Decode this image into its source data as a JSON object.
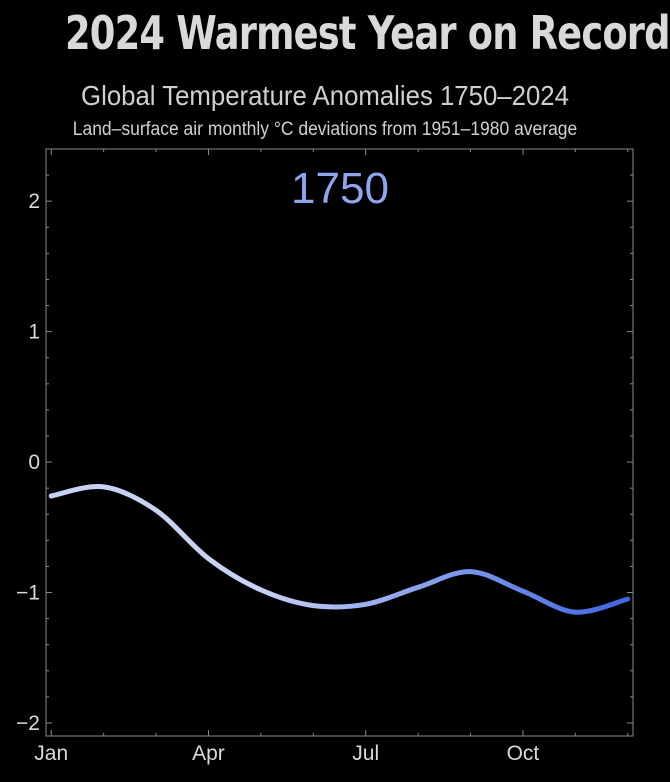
{
  "title": "2024 Warmest Year on Record",
  "subtitle": "Global Temperature Anomalies 1750–2024",
  "caption": "Land–surface air monthly °C deviations from 1951–1980 average",
  "chart_data": {
    "type": "line",
    "year_label": "1750",
    "x": [
      1,
      2,
      3,
      4,
      5,
      6,
      7,
      8,
      9,
      10,
      11,
      12
    ],
    "x_tick_values": [
      1,
      4,
      7,
      10
    ],
    "x_tick_labels": [
      "Jan",
      "Apr",
      "Jul",
      "Oct"
    ],
    "xlim": [
      0.9,
      12.1
    ],
    "ylim": [
      -2.1,
      2.4
    ],
    "y_ticks": [
      2,
      1,
      0,
      -1,
      -2
    ],
    "y_tick_labels": [
      "2",
      "1",
      "0",
      "−1",
      "−2"
    ],
    "series": [
      {
        "values": [
          -0.26,
          -0.19,
          -0.37,
          -0.74,
          -0.98,
          -1.1,
          -1.09,
          -0.96,
          -0.84,
          -0.99,
          -1.15,
          -1.05
        ],
        "color_start": "#c8d2f5",
        "color_end": "#3e66e0"
      }
    ],
    "grid": false
  }
}
